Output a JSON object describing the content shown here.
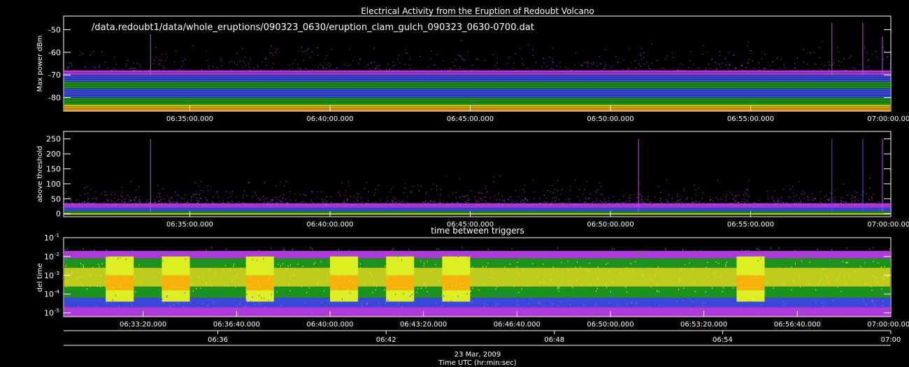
{
  "figure": {
    "title": "Electrical Activity from the Eruption of Redoubt Volcano",
    "file_path": "/data.redoubt1/data/whole_eruptions/090323_0630/eruption_clam_gulch_090323_0630-0700.dat",
    "date_label": "23 Mar, 2009",
    "xlabel": "Time UTC (hr:min:sec)"
  },
  "colors": {
    "background": "#000000",
    "axes": "#ffffff",
    "density_low": "#cc44ff",
    "density_mid_low": "#4455ff",
    "density_mid": "#22aa22",
    "density_high": "#ddee22",
    "density_max": "#ff9900"
  },
  "chart_data": [
    {
      "type": "scatter",
      "name": "max-power",
      "title": "",
      "ylabel": "Max power dBm",
      "ylim": [
        -86,
        -44
      ],
      "yticks": [
        -50,
        -60,
        -70,
        -80
      ],
      "ytick_labels": [
        "-50",
        "-60",
        "-70",
        "-80"
      ],
      "xticks": [
        "06:35:00.000",
        "06:40:00.000",
        "06:45:00.000",
        "06:50:00.000",
        "06:55:00.000",
        "07:00:00.000"
      ],
      "x_range_minutes": [
        30.5,
        60
      ],
      "baseline_band": [
        -85,
        -68
      ],
      "spikes": [
        {
          "t": 33.6,
          "y": -52
        },
        {
          "t": 57.9,
          "y": -47
        },
        {
          "t": 59.0,
          "y": -47
        },
        {
          "t": 59.7,
          "y": -53
        }
      ]
    },
    {
      "type": "scatter",
      "name": "above-threshold",
      "title": "",
      "ylabel": "above threshold",
      "ylim": [
        -10,
        275
      ],
      "yticks": [
        0,
        50,
        100,
        150,
        200,
        250
      ],
      "ytick_labels": [
        "0",
        "50",
        "100",
        "150",
        "200",
        "250"
      ],
      "xticks": [
        "06:35:00.000",
        "06:40:00.000",
        "06:45:00.000",
        "06:50:00.000",
        "06:55:00.000",
        "07:00:00.000"
      ],
      "x_range_minutes": [
        30.5,
        60
      ],
      "baseline_band": [
        0,
        40
      ],
      "spikes": [
        {
          "t": 33.6,
          "y": 250
        },
        {
          "t": 51.0,
          "y": 250
        },
        {
          "t": 57.9,
          "y": 250
        },
        {
          "t": 59.0,
          "y": 250
        },
        {
          "t": 59.7,
          "y": 250
        }
      ]
    },
    {
      "type": "scatter",
      "name": "time-between-triggers",
      "title": "time between triggers",
      "ylabel": "del time",
      "log_scale": true,
      "ylim_exp": [
        -5.2,
        -1
      ],
      "yticks_exp": [
        -1,
        -2,
        -3,
        -4,
        -5
      ],
      "xticks": [
        "06:33:20.000",
        "06:36:40.000",
        "06:40:00.000",
        "06:43:20.000",
        "06:46:40.000",
        "06:50:00.000",
        "06:53:20.000",
        "06:56:40.000",
        "07:00:00.000"
      ],
      "x_range_minutes": [
        30.5,
        60
      ],
      "blocks_minutes": [
        {
          "start": 32.0,
          "end": 33.0
        },
        {
          "start": 34.0,
          "end": 35.0
        },
        {
          "start": 37.0,
          "end": 38.0
        },
        {
          "start": 40.0,
          "end": 41.0
        },
        {
          "start": 42.0,
          "end": 43.0
        },
        {
          "start": 44.0,
          "end": 45.0
        },
        {
          "start": 54.5,
          "end": 55.5
        }
      ]
    }
  ],
  "bottom_axis": {
    "ticks": [
      "06:36",
      "06:42",
      "06:48",
      "06:54",
      "07:00"
    ]
  }
}
